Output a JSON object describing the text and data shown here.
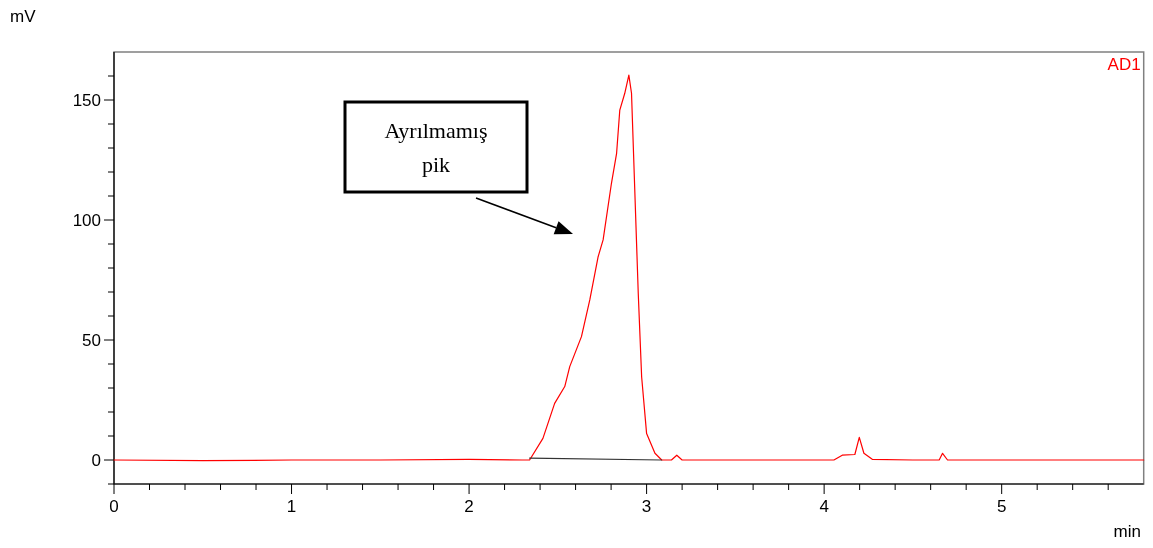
{
  "chart_data": {
    "type": "line",
    "xlabel": "min",
    "ylabel": "mV",
    "xlim": [
      0,
      5.8
    ],
    "ylim": [
      -10,
      170
    ],
    "xticks": [
      0,
      {
        "value": 0.2,
        "label": null
      },
      {
        "value": 0.4,
        "label": null
      },
      {
        "value": 0.6,
        "label": null
      },
      {
        "value": 0.8,
        "label": null
      },
      1,
      {
        "value": 1.2,
        "label": null
      },
      {
        "value": 1.4,
        "label": null
      },
      {
        "value": 1.6,
        "label": null
      },
      {
        "value": 1.8,
        "label": null
      },
      2,
      {
        "value": 2.2,
        "label": null
      },
      {
        "value": 2.4,
        "label": null
      },
      {
        "value": 2.6,
        "label": null
      },
      {
        "value": 2.8,
        "label": null
      },
      3,
      {
        "value": 3.2,
        "label": null
      },
      {
        "value": 3.4,
        "label": null
      },
      {
        "value": 3.6,
        "label": null
      },
      {
        "value": 3.8,
        "label": null
      },
      4,
      {
        "value": 4.2,
        "label": null
      },
      {
        "value": 4.4,
        "label": null
      },
      {
        "value": 4.6,
        "label": null
      },
      {
        "value": 4.8,
        "label": null
      },
      5,
      {
        "value": 5.2,
        "label": null
      },
      {
        "value": 5.4,
        "label": null
      },
      {
        "value": 5.6,
        "label": null
      }
    ],
    "yticks": [
      {
        "value": -10,
        "label": null
      },
      0,
      {
        "value": 10,
        "label": null
      },
      {
        "value": 20,
        "label": null
      },
      {
        "value": 30,
        "label": null
      },
      {
        "value": 40,
        "label": null
      },
      50,
      {
        "value": 60,
        "label": null
      },
      {
        "value": 70,
        "label": null
      },
      {
        "value": 80,
        "label": null
      },
      {
        "value": 90,
        "label": null
      },
      100,
      {
        "value": 110,
        "label": null
      },
      {
        "value": 120,
        "label": null
      },
      {
        "value": 130,
        "label": null
      },
      {
        "value": 140,
        "label": null
      },
      150,
      {
        "value": 160,
        "label": null
      }
    ],
    "grid": false,
    "marker": "none",
    "line_style": "solid",
    "series": [
      {
        "color": "#ff0000",
        "x": [
          0,
          0.5,
          1,
          1.5,
          2,
          2.3,
          2.341,
          2.416,
          2.482,
          2.539,
          2.567,
          2.633,
          2.68,
          2.727,
          2.755,
          2.802,
          2.831,
          2.849,
          2.877,
          2.9,
          2.915,
          2.934,
          2.953,
          2.972,
          3,
          3.047,
          3.085,
          3.14,
          3.17,
          3.2,
          3.6,
          4.055,
          4.102,
          4.173,
          4.198,
          4.224,
          4.271,
          4.5,
          4.648,
          4.667,
          4.695,
          5.2,
          5.8
        ],
        "values": [
          0,
          -0.3,
          0,
          0,
          0.3,
          0,
          0,
          9,
          23.6,
          30.6,
          38.9,
          51.4,
          66.7,
          84.7,
          91.7,
          115.3,
          127.8,
          145.8,
          152.8,
          160.4,
          152.8,
          111,
          69.4,
          34.7,
          11,
          2.8,
          0,
          0,
          2,
          0,
          0,
          0,
          2,
          2.3,
          9.4,
          2.8,
          0.3,
          0,
          0,
          2.8,
          0,
          0,
          0
        ]
      },
      {
        "color": "#333333",
        "x": [
          2.341,
          3.085
        ],
        "values": [
          0.8,
          0
        ]
      }
    ],
    "annotations": [
      "AD1",
      "Ayrılmamış pik"
    ]
  }
}
